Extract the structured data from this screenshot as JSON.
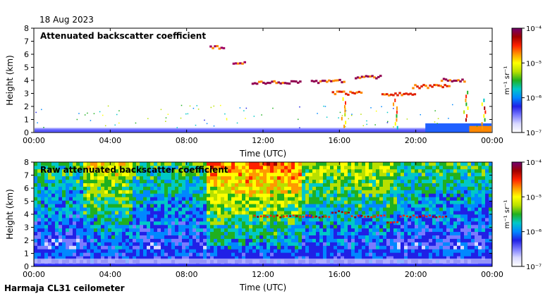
{
  "header": {
    "date": "18 Aug 2023"
  },
  "footer": {
    "station": "Harmaja CL31 ceilometer"
  },
  "colors": {
    "ramp": [
      "#ffffff",
      "#d9d9ff",
      "#7a7aff",
      "#2020e6",
      "#0088ff",
      "#00c8c8",
      "#20b020",
      "#b8e000",
      "#ffff00",
      "#ff9900",
      "#ff2200",
      "#a00000",
      "#700070"
    ]
  },
  "colorbar": {
    "unit_text": "m⁻¹ sr⁻¹",
    "tick_labels": [
      "10⁻⁴",
      "10⁻⁵",
      "10⁻⁶",
      "10⁻⁷"
    ]
  },
  "chart_data": [
    {
      "type": "heatmap",
      "title": "Attenuated backscatter coefficient",
      "xlabel": "Time (UTC)",
      "ylabel": "Height (km)",
      "x_ticks": [
        "00:00",
        "04:00",
        "08:00",
        "12:00",
        "16:00",
        "20:00",
        "00:00"
      ],
      "y_ticks": [
        "0",
        "1",
        "2",
        "3",
        "4",
        "5",
        "6",
        "7",
        "8"
      ],
      "ylim": [
        0,
        8
      ],
      "xlim_hours": [
        0,
        24
      ],
      "colorbar_range": [
        1e-07,
        0.0001
      ],
      "features": {
        "boundary_layer_top_km": 0.35,
        "high_cloud_segments": [
          {
            "t_start": 9.2,
            "t_end": 10.0,
            "height_km": 6.6
          },
          {
            "t_start": 10.4,
            "t_end": 11.1,
            "height_km": 5.4
          },
          {
            "t_start": 11.4,
            "t_end": 14.0,
            "height_km": 3.9
          },
          {
            "t_start": 14.5,
            "t_end": 16.3,
            "height_km": 4.0
          },
          {
            "t_start": 15.6,
            "t_end": 17.2,
            "height_km": 3.1
          },
          {
            "t_start": 16.8,
            "t_end": 18.2,
            "height_km": 4.3
          },
          {
            "t_start": 18.2,
            "t_end": 20.0,
            "height_km": 3.0
          },
          {
            "t_start": 19.8,
            "t_end": 21.8,
            "height_km": 3.6
          },
          {
            "t_start": 21.3,
            "t_end": 22.6,
            "height_km": 4.1
          }
        ]
      }
    },
    {
      "type": "heatmap",
      "title": "Raw attenuated backscatter coefficient",
      "xlabel": "Time (UTC)",
      "ylabel": "Height (km)",
      "x_ticks": [
        "00:00",
        "04:00",
        "08:00",
        "12:00",
        "16:00",
        "20:00",
        "00:00"
      ],
      "y_ticks": [
        "0",
        "1",
        "2",
        "3",
        "4",
        "5",
        "6",
        "7",
        "8"
      ],
      "ylim": [
        0,
        8
      ],
      "xlim_hours": [
        0,
        24
      ],
      "colorbar_range": [
        1e-07,
        0.0001
      ],
      "features": {
        "noise_level": "high aloft, low near surface",
        "boundary_layer_top_km": 0.35,
        "cloud_layer_height_km": 3.9
      }
    }
  ]
}
